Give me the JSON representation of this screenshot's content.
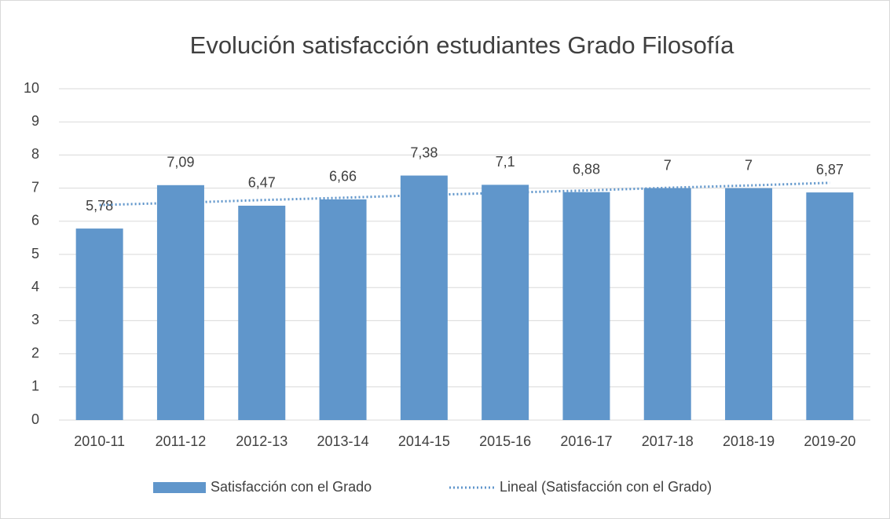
{
  "chart_data": {
    "type": "bar",
    "title": "Evolución satisfacción estudiantes Grado Filosofía",
    "categories": [
      "2010-11",
      "2011-12",
      "2012-13",
      "2013-14",
      "2014-15",
      "2015-16",
      "2016-17",
      "2017-18",
      "2018-19",
      "2019-20"
    ],
    "series": [
      {
        "name": "Satisfacción con el Grado",
        "color": "#6096cb",
        "values": [
          5.78,
          7.09,
          6.47,
          6.66,
          7.38,
          7.1,
          6.88,
          7,
          7,
          6.87
        ],
        "value_labels": [
          "5,78",
          "7,09",
          "6,47",
          "6,66",
          "7,38",
          "7,1",
          "6,88",
          "7",
          "7",
          "6,87"
        ]
      },
      {
        "name": "Lineal (Satisfacción con el Grado)",
        "color": "#6096cb",
        "type": "line",
        "style": "dotted",
        "values": [
          6.49,
          6.56,
          6.64,
          6.71,
          6.79,
          6.86,
          6.93,
          7.01,
          7.08,
          7.16
        ]
      }
    ],
    "ylim": [
      0,
      10
    ],
    "yticks": [
      0,
      1,
      2,
      3,
      4,
      5,
      6,
      7,
      8,
      9,
      10
    ],
    "grid": true,
    "legend": "bottom"
  }
}
